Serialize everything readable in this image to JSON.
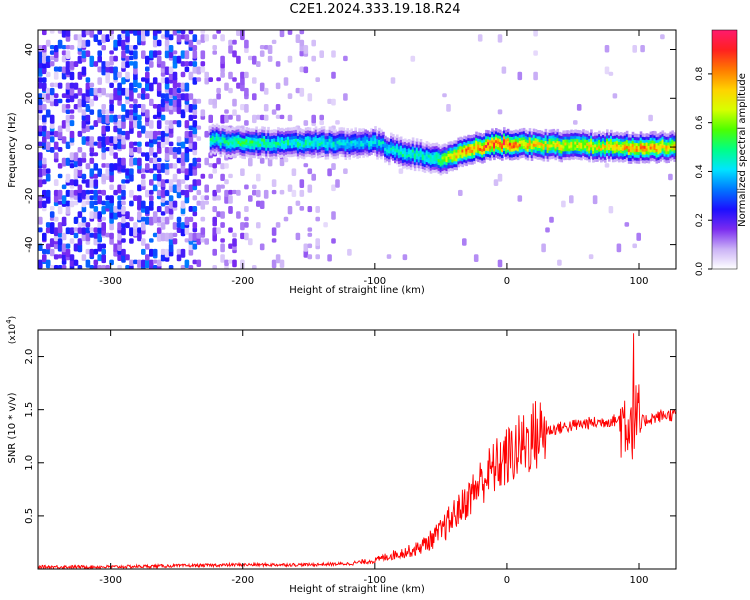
{
  "title": "C2E1.2024.333.19.18.R24",
  "chart_data": [
    {
      "type": "heatmap",
      "xlabel": "Height of straight line (km)",
      "ylabel": "Frequency (Hz)",
      "xlim": [
        -355,
        128
      ],
      "ylim": [
        -50,
        48
      ],
      "xticks": [
        -300,
        -200,
        -100,
        0,
        100
      ],
      "yticks": [
        -40,
        -20,
        0,
        20,
        40
      ],
      "colorbar": {
        "label": "Normalized spectral amplitude",
        "range": [
          0.0,
          0.98
        ],
        "ticks": [
          0.0,
          0.2,
          0.4,
          0.6,
          0.8
        ],
        "colors": [
          "#ffffff",
          "#cbb2f6",
          "#7a2bf0",
          "#1b10ff",
          "#0078ff",
          "#00e5ff",
          "#00ff85",
          "#4dff00",
          "#d8ff00",
          "#ffd200",
          "#ff7a00",
          "#ff2020",
          "#ff1a6e"
        ]
      },
      "ridge": {
        "x": [
          -225,
          -200,
          -175,
          -150,
          -125,
          -100,
          -90,
          -80,
          -70,
          -60,
          -55,
          -50,
          -45,
          -40,
          -30,
          -20,
          -10,
          0,
          10,
          25,
          50,
          75,
          90,
          100,
          115,
          128
        ],
        "y": [
          3,
          2,
          1.5,
          2,
          1.5,
          2,
          -0.5,
          -2,
          -3,
          -4,
          -5,
          -5,
          -4,
          -3,
          -1,
          0,
          1,
          1.5,
          1,
          1,
          0.5,
          0.5,
          0,
          0,
          0,
          0
        ],
        "peak_amplitude": [
          0.5,
          0.55,
          0.5,
          0.5,
          0.45,
          0.45,
          0.45,
          0.5,
          0.5,
          0.5,
          0.55,
          0.6,
          0.7,
          0.8,
          0.85,
          0.9,
          0.92,
          0.92,
          0.8,
          0.75,
          0.72,
          0.75,
          0.8,
          0.85,
          0.8,
          0.75
        ]
      }
    },
    {
      "type": "line",
      "xlabel": "Height of straight line (km)",
      "ylabel": "SNR (10 * v/v)",
      "yscale_label": "(x10",
      "yscale_exp": "4",
      "yscale_close": ")",
      "xlim": [
        -355,
        128
      ],
      "ylim": [
        0,
        2.25
      ],
      "xticks": [
        -300,
        -200,
        -100,
        0,
        100
      ],
      "yticks": [
        0.5,
        1.0,
        1.5,
        2.0
      ],
      "color": "#ff0000",
      "series": [
        {
          "x": [
            -355,
            -300,
            -250,
            -200,
            -150,
            -120,
            -100,
            -90,
            -80,
            -70,
            -60,
            -50,
            -40,
            -30,
            -20,
            -10,
            0,
            10,
            20,
            30,
            40,
            50,
            60,
            70,
            80,
            90,
            95,
            100,
            105,
            110,
            120,
            128
          ],
          "y": [
            0.02,
            0.02,
            0.03,
            0.04,
            0.04,
            0.05,
            0.08,
            0.12,
            0.15,
            0.18,
            0.25,
            0.35,
            0.5,
            0.65,
            0.82,
            0.95,
            1.05,
            1.15,
            1.25,
            1.3,
            1.33,
            1.35,
            1.37,
            1.38,
            1.4,
            1.4,
            1.4,
            1.38,
            1.4,
            1.42,
            1.45,
            1.45
          ]
        }
      ],
      "max_value": 2.22,
      "max_at_x": 96
    }
  ]
}
